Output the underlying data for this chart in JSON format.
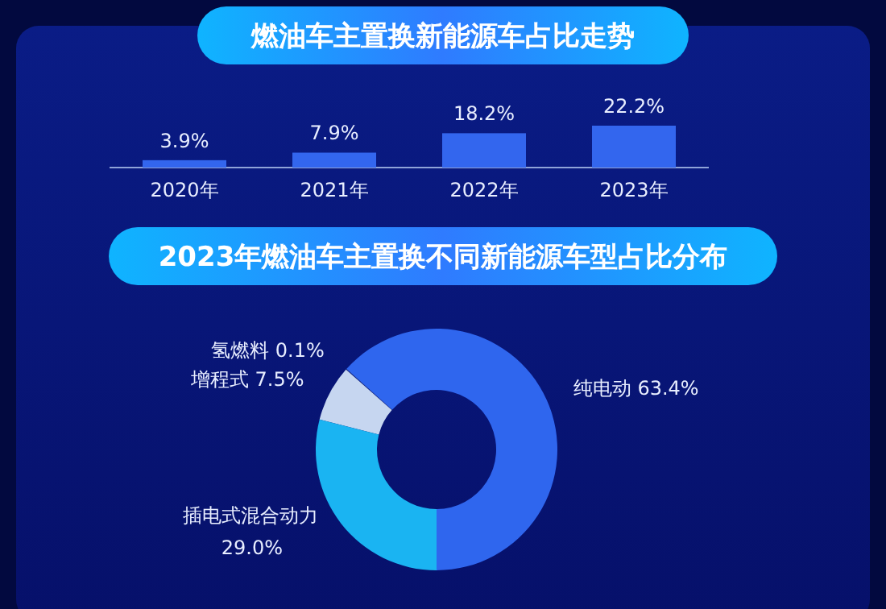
{
  "chart_data": [
    {
      "type": "bar",
      "title": "燃油车主置换新能源车占比走势",
      "categories": [
        "2020年",
        "2021年",
        "2022年",
        "2023年"
      ],
      "values": [
        3.9,
        7.9,
        18.2,
        22.2
      ],
      "value_labels": [
        "3.9%",
        "7.9%",
        "18.2%",
        "22.2%"
      ],
      "color": "#3366ee"
    },
    {
      "type": "donut",
      "title": "2023年燃油车主置换不同新能源车型占比分布",
      "categories": [
        "纯电动",
        "氢燃料",
        "增程式",
        "插电式混合动力"
      ],
      "values": [
        63.4,
        0.1,
        7.5,
        29.0
      ],
      "value_labels": [
        "63.4%",
        "0.1%",
        "7.5%",
        "29.0%"
      ],
      "colors": [
        "#2f66ee",
        "#1b2f8a",
        "#c6d6f0",
        "#1ab4f2"
      ]
    }
  ]
}
